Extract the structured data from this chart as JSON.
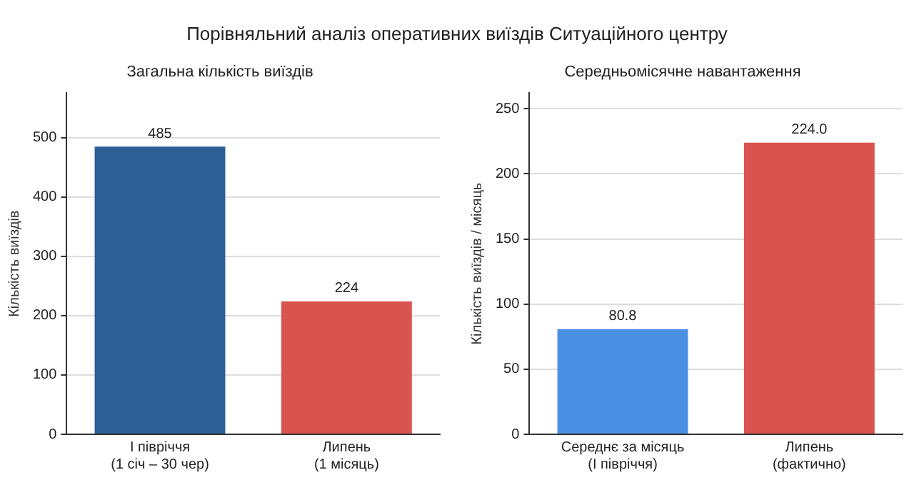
{
  "chart_data": [
    {
      "type": "bar",
      "title": "Загальна кількість виїздів",
      "ylabel": "Кількість виїздів",
      "categories": [
        "І півріччя\n(1 січ – 30 чер)",
        "Липень\n(1 місяць)"
      ],
      "values": [
        485,
        224
      ],
      "colors": [
        "#2b5f95",
        "#d9534f"
      ],
      "value_labels": [
        "485",
        "224"
      ],
      "ylim": [
        0,
        575
      ],
      "yticks": [
        0,
        100,
        200,
        300,
        400,
        500
      ],
      "grid": "y",
      "legend": false,
      "annotations": [
        "Порівняльний аналіз оперативних виїздів Ситуаційного центру"
      ]
    },
    {
      "type": "bar",
      "title": "Середньомісячне навантаження",
      "ylabel": "Кількість виїздів / місяць",
      "categories": [
        "Середнє за місяць\n(І півріччя)",
        "Липень\n(фактично)"
      ],
      "values": [
        80.8,
        224.0
      ],
      "colors": [
        "#4a90e2",
        "#d9534f"
      ],
      "value_labels": [
        "80.8",
        "224.0"
      ],
      "ylim": [
        0,
        262
      ],
      "yticks": [
        0,
        50,
        100,
        150,
        200,
        250
      ],
      "grid": "y",
      "legend": false
    }
  ]
}
